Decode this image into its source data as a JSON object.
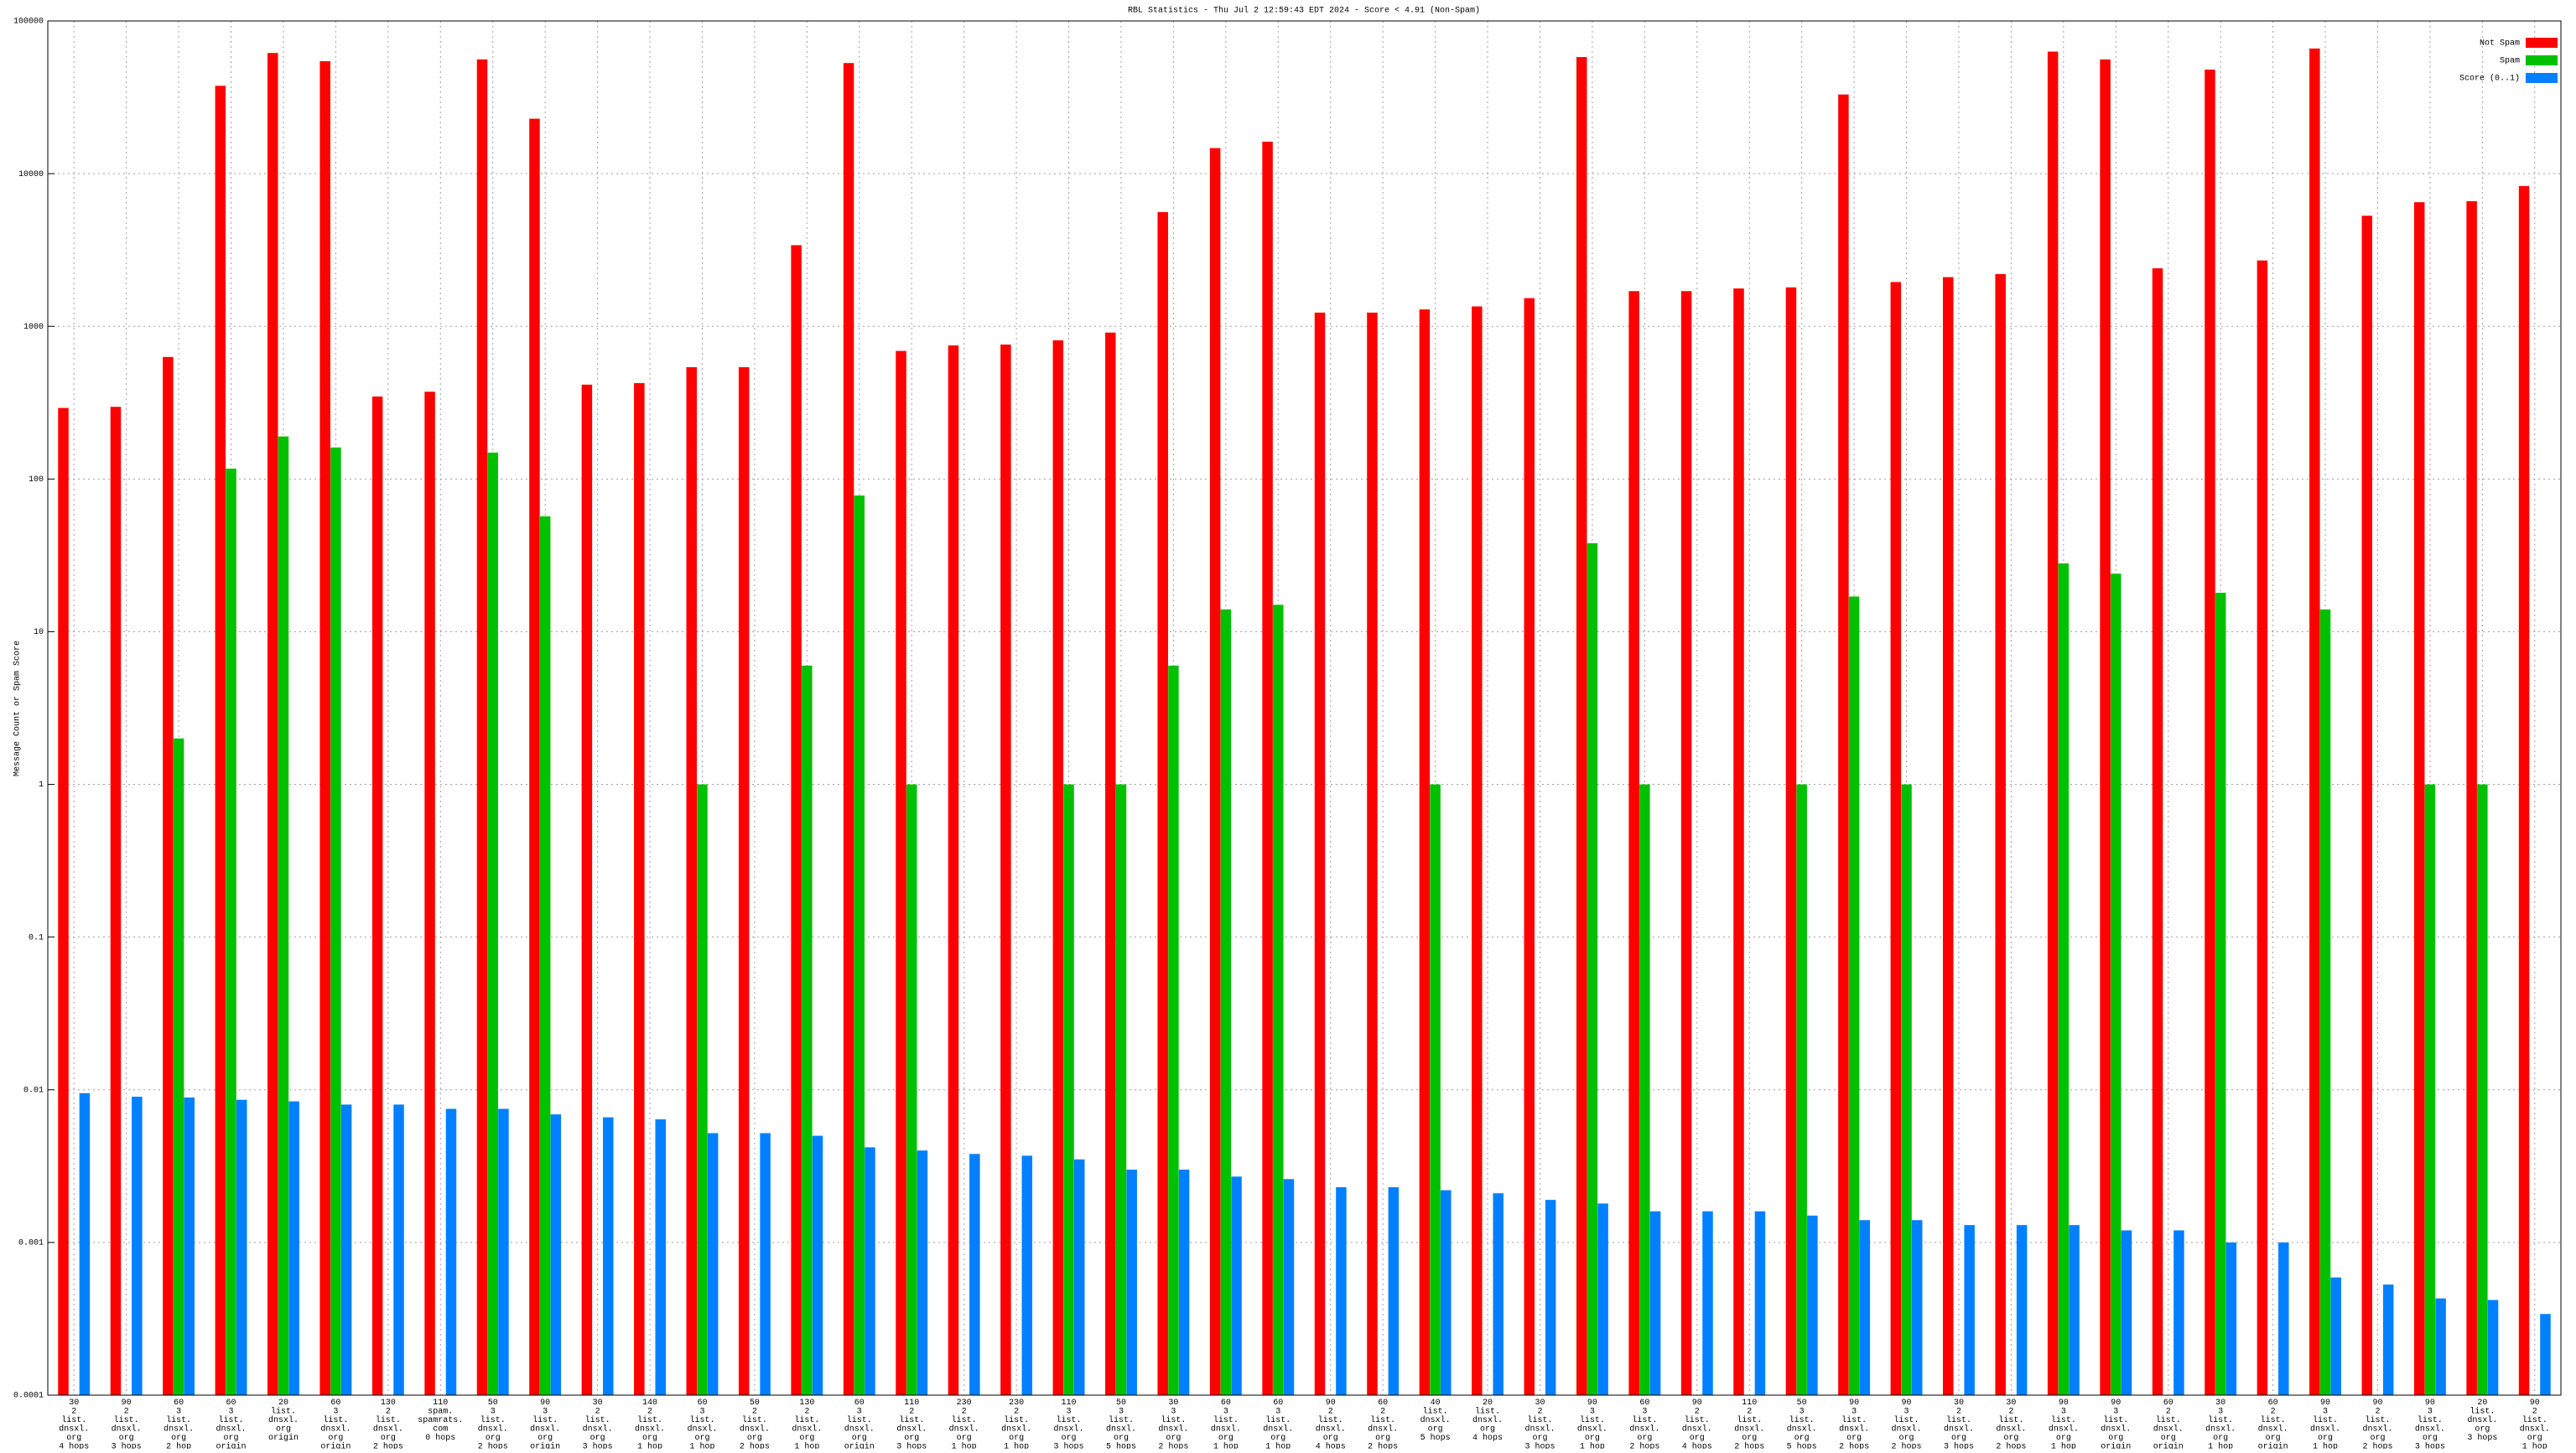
{
  "chart_data": {
    "type": "bar",
    "title": "RBL Statistics - Thu Jul  2 12:59:43 EDT 2024 - Score < 4.91 (Non-Spam)",
    "y_label": "Message Count or Spam Score",
    "log_scale": true,
    "grid": true,
    "legend": "top-right",
    "ylim": [
      0.0001,
      100000
    ],
    "yticks": [
      0.0001,
      0.001,
      0.01,
      0.1,
      1,
      10,
      100,
      1000,
      10000,
      100000
    ],
    "categories": [
      "30\n2\nlist.\ndnsxl.\norg\n4 hops",
      "90\n2\nlist.\ndnsxl.\norg\n3 hops",
      "60\n3\nlist.\ndnsxl.\norg\n2 hop",
      "60\n3\nlist.\ndnsxl.\norg\norigin",
      "20\nlist.\ndnsxl.\norg\norigin",
      "60\n3\nlist.\ndnsxl.\norg\norigin",
      "130\n2\nlist.\ndnsxl.\norg\n2 hops",
      "110\nspam.\nspamrats.\ncom\n0 hops",
      "50\n3\nlist.\ndnsxl.\norg\n2 hops",
      "90\n3\nlist.\ndnsxl.\norg\norigin",
      "30\n2\nlist.\ndnsxl.\norg\n3 hops",
      "140\n2\nlist.\ndnsxl.\norg\n1 hop",
      "60\n3\nlist.\ndnsxl.\norg\n1 hop",
      "50\n2\nlist.\ndnsxl.\norg\n2 hops",
      "130\n2\nlist.\ndnsxl.\norg\n1 hop",
      "60\n3\nlist.\ndnsxl.\norg\norigin",
      "110\n2\nlist.\ndnsxl.\norg\n3 hops",
      "230\n2\nlist.\ndnsxl.\norg\n1 hop",
      "230\n2\nlist.\ndnsxl.\norg\n1 hop",
      "110\n3\nlist.\ndnsxl.\norg\n3 hops",
      "50\n3\nlist.\ndnsxl.\norg\n5 hops",
      "30\n3\nlist.\ndnsxl.\norg\n2 hops",
      "60\n3\nlist.\ndnsxl.\norg\n1 hop",
      "60\n3\nlist.\ndnsxl.\norg\n1 hop",
      "90\n2\nlist.\ndnsxl.\norg\n4 hops",
      "60\n2\nlist.\ndnsxl.\norg\n2 hops",
      "40\nlist.\ndnsxl.\norg\n5 hops",
      "20\nlist.\ndnsxl.\norg\n4 hops",
      "30\n2\nlist.\ndnsxl.\norg\n3 hops",
      "90\n3\nlist.\ndnsxl.\norg\n1 hop",
      "60\n3\nlist.\ndnsxl.\norg\n2 hops",
      "90\n2\nlist.\ndnsxl.\norg\n4 hops",
      "110\n2\nlist.\ndnsxl.\norg\n2 hops",
      "50\n3\nlist.\ndnsxl.\norg\n5 hops",
      "90\n3\nlist.\ndnsxl.\norg\n2 hops",
      "90\n3\nlist.\ndnsxl.\norg\n2 hops",
      "30\n2\nlist.\ndnsxl.\norg\n3 hops",
      "30\n2\nlist.\ndnsxl.\norg\n2 hops",
      "90\n3\nlist.\ndnsxl.\norg\n1 hop",
      "90\n3\nlist.\ndnsxl.\norg\norigin",
      "60\n2\nlist.\ndnsxl.\norg\norigin",
      "30\n3\nlist.\ndnsxl.\norg\n1 hop",
      "60\n2\nlist.\ndnsxl.\norg\norigin",
      "90\n3\nlist.\ndnsxl.\norg\n1 hop",
      "90\n2\nlist.\ndnsxl.\norg\n2 hops",
      "90\n3\nlist.\ndnsxl.\norg\n3 hops",
      "20\nlist.\ndnsxl.\norg\n3 hops",
      "90\n2\nlist.\ndnsxl.\norg\n1 hop"
    ],
    "series": [
      {
        "name": "Not Spam",
        "color": "#ff0000",
        "values": [
          292,
          297,
          630,
          37600,
          61700,
          54500,
          347,
          373,
          56000,
          22900,
          415,
          425,
          540,
          540,
          3400,
          53000,
          690,
          750,
          760,
          810,
          910,
          5600,
          14700,
          16200,
          1230,
          1230,
          1290,
          1350,
          1530,
          58000,
          1700,
          1700,
          1770,
          1800,
          33000,
          1950,
          2100,
          2200,
          63000,
          56000,
          2400,
          48000,
          2700,
          66000,
          5300,
          6500,
          6600,
          8300
        ]
      },
      {
        "name": "Spam",
        "color": "#00c000",
        "values": [
          null,
          null,
          2,
          117,
          190,
          161,
          null,
          null,
          149,
          57,
          null,
          null,
          1,
          null,
          6,
          78,
          1,
          null,
          null,
          1,
          1,
          6,
          14,
          15,
          null,
          null,
          1,
          null,
          null,
          38,
          1,
          null,
          null,
          1,
          17,
          1,
          null,
          null,
          28,
          24,
          null,
          18,
          null,
          14,
          null,
          1,
          1,
          null
        ]
      },
      {
        "name": "Score (0..1)",
        "color": "#0080ff",
        "values": [
          0.0095,
          0.009,
          0.0089,
          0.0086,
          0.0084,
          0.008,
          0.008,
          0.0075,
          0.0075,
          0.0069,
          0.0066,
          0.0064,
          0.0052,
          0.0052,
          0.005,
          0.0042,
          0.004,
          0.0038,
          0.0037,
          0.0035,
          0.003,
          0.003,
          0.0027,
          0.0026,
          0.0023,
          0.0023,
          0.0022,
          0.0021,
          0.0019,
          0.0018,
          0.0016,
          0.0016,
          0.0016,
          0.0015,
          0.0014,
          0.0014,
          0.0013,
          0.0013,
          0.0013,
          0.0012,
          0.0012,
          0.001,
          0.001,
          0.00059,
          0.00053,
          0.00043,
          0.00042,
          0.00034
        ]
      }
    ]
  }
}
